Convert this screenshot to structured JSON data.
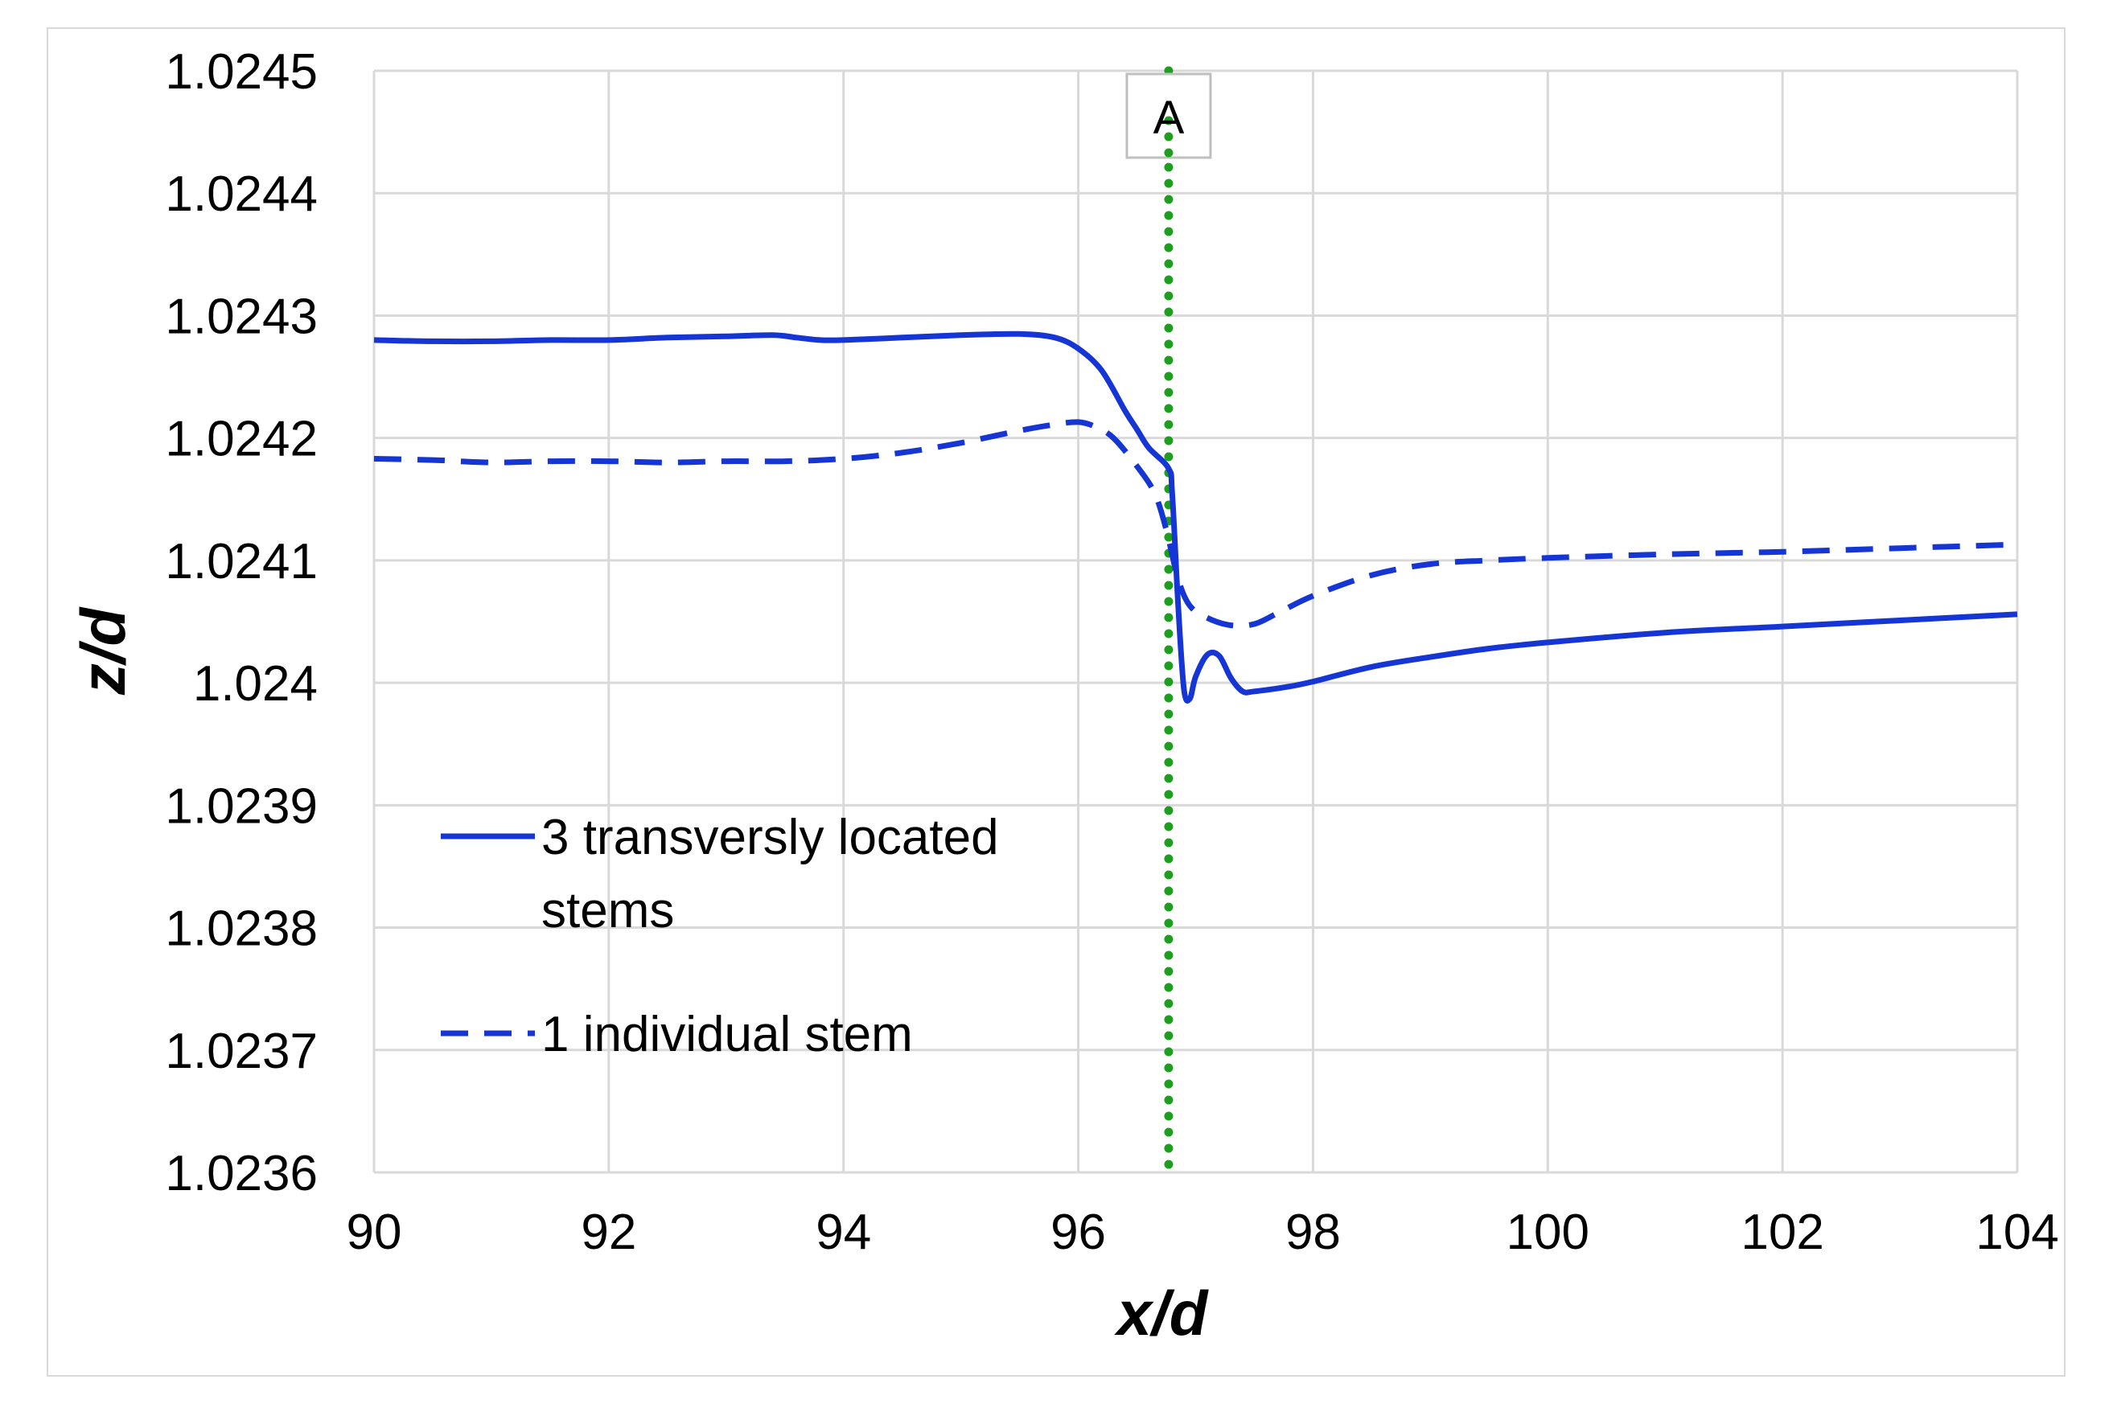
{
  "chart_data": {
    "type": "line",
    "title": "",
    "xlabel": "x/d",
    "ylabel": "z/d",
    "xlim": [
      90,
      104
    ],
    "ylim": [
      1.0236,
      1.0245
    ],
    "x_ticks": [
      "90",
      "92",
      "94",
      "96",
      "98",
      "100",
      "102",
      "104"
    ],
    "y_ticks": [
      "1.0236",
      "1.0237",
      "1.0238",
      "1.0239",
      "1.024",
      "1.0241",
      "1.0242",
      "1.0243",
      "1.0244",
      "1.0245"
    ],
    "grid": true,
    "annotation": {
      "label": "A",
      "x": 96.77
    },
    "series": [
      {
        "name": "3 transversly located",
        "name_line2": "stems",
        "style": "solid",
        "color": "#1535d4",
        "points": [
          [
            90,
            1.02428
          ],
          [
            90.5,
            1.024279
          ],
          [
            91,
            1.024279
          ],
          [
            91.5,
            1.02428
          ],
          [
            92,
            1.02428
          ],
          [
            92.5,
            1.024282
          ],
          [
            93,
            1.024283
          ],
          [
            93.4,
            1.024284
          ],
          [
            93.6,
            1.024282
          ],
          [
            93.8,
            1.02428
          ],
          [
            94,
            1.02428
          ],
          [
            94.5,
            1.024282
          ],
          [
            95,
            1.024284
          ],
          [
            95.5,
            1.024285
          ],
          [
            95.8,
            1.024282
          ],
          [
            96,
            1.024273
          ],
          [
            96.2,
            1.024255
          ],
          [
            96.4,
            1.024222
          ],
          [
            96.5,
            1.024207
          ],
          [
            96.6,
            1.024192
          ],
          [
            96.77,
            1.024175
          ],
          [
            96.8,
            1.024155
          ],
          [
            96.85,
            1.024065
          ],
          [
            96.9,
            1.023995
          ],
          [
            96.95,
            1.023987
          ],
          [
            97,
            1.024005
          ],
          [
            97.1,
            1.024023
          ],
          [
            97.2,
            1.024022
          ],
          [
            97.3,
            1.024004
          ],
          [
            97.4,
            1.023993
          ],
          [
            97.5,
            1.023993
          ],
          [
            97.8,
            1.023997
          ],
          [
            98,
            1.024001
          ],
          [
            98.5,
            1.024013
          ],
          [
            99,
            1.024021
          ],
          [
            99.5,
            1.024028
          ],
          [
            100,
            1.024033
          ],
          [
            101,
            1.024041
          ],
          [
            102,
            1.024046
          ],
          [
            103,
            1.024051
          ],
          [
            104,
            1.024056
          ]
        ]
      },
      {
        "name": "1 individual stem",
        "style": "dashed",
        "color": "#1535d4",
        "points": [
          [
            90,
            1.024183
          ],
          [
            90.5,
            1.024182
          ],
          [
            91,
            1.02418
          ],
          [
            91.5,
            1.024181
          ],
          [
            92,
            1.024181
          ],
          [
            92.5,
            1.02418
          ],
          [
            93,
            1.024181
          ],
          [
            93.5,
            1.024181
          ],
          [
            94,
            1.024183
          ],
          [
            94.5,
            1.024188
          ],
          [
            95,
            1.024196
          ],
          [
            95.5,
            1.024206
          ],
          [
            95.8,
            1.024211
          ],
          [
            96,
            1.024213
          ],
          [
            96.15,
            1.024209
          ],
          [
            96.3,
            1.0242
          ],
          [
            96.5,
            1.024177
          ],
          [
            96.65,
            1.024155
          ],
          [
            96.75,
            1.024125
          ],
          [
            96.85,
            1.024085
          ],
          [
            96.95,
            1.024063
          ],
          [
            97.1,
            1.024053
          ],
          [
            97.3,
            1.024047
          ],
          [
            97.5,
            1.024048
          ],
          [
            97.7,
            1.024057
          ],
          [
            98,
            1.024071
          ],
          [
            98.5,
            1.024088
          ],
          [
            99,
            1.024097
          ],
          [
            99.5,
            1.0241
          ],
          [
            100,
            1.024102
          ],
          [
            101,
            1.024105
          ],
          [
            102,
            1.024107
          ],
          [
            103,
            1.02411
          ],
          [
            104,
            1.024113
          ]
        ]
      }
    ]
  }
}
